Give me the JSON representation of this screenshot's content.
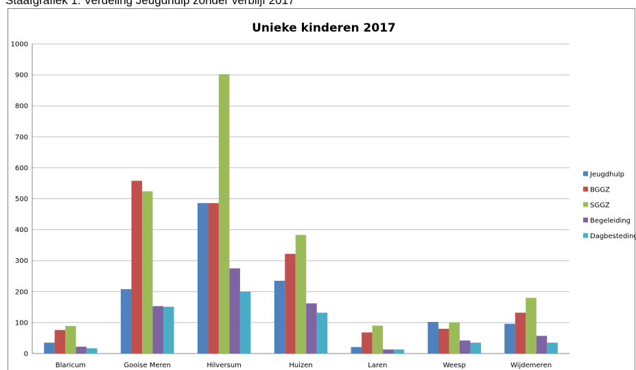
{
  "caption": "Staafgrafiek 1: Verdeling Jeugdhulp zonder verblijf 2017",
  "chart_data": {
    "type": "bar",
    "title": "Unieke kinderen 2017",
    "xlabel": "",
    "ylabel": "",
    "ylim": [
      0,
      1000
    ],
    "yticks": [
      0,
      100,
      200,
      300,
      400,
      500,
      600,
      700,
      800,
      900,
      1000
    ],
    "grid": true,
    "legend_position": "right",
    "categories": [
      "Blaricum",
      "Gooise Meren",
      "Hilversum",
      "Huizen",
      "Laren",
      "Weesp",
      "Wijdemeren"
    ],
    "series": [
      {
        "name": "Jeugdhulp",
        "color": "#4F81BD",
        "values": [
          35,
          208,
          486,
          235,
          21,
          102,
          96
        ]
      },
      {
        "name": "BGGZ",
        "color": "#C0504D",
        "values": [
          76,
          558,
          486,
          322,
          68,
          80,
          132
        ]
      },
      {
        "name": "SGGZ",
        "color": "#9BBB59",
        "values": [
          89,
          524,
          902,
          383,
          90,
          100,
          180
        ]
      },
      {
        "name": "Begeleiding",
        "color": "#8064A2",
        "values": [
          22,
          153,
          275,
          162,
          13,
          42,
          57
        ]
      },
      {
        "name": "Dagbesteding",
        "color": "#4BACC6",
        "values": [
          17,
          151,
          200,
          132,
          13,
          35,
          35
        ]
      }
    ]
  }
}
